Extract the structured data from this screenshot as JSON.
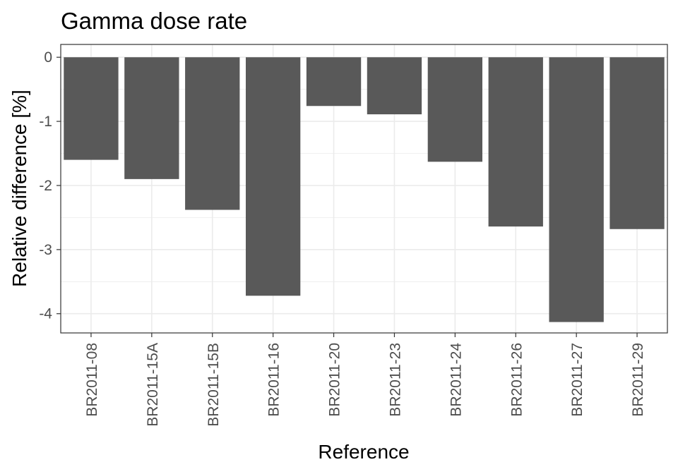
{
  "chart_data": {
    "type": "bar",
    "title": "Gamma dose rate",
    "xlabel": "Reference",
    "ylabel": "Relative difference [%]",
    "categories": [
      "BR2011-08",
      "BR2011-15A",
      "BR2011-15B",
      "BR2011-16",
      "BR2011-20",
      "BR2011-23",
      "BR2011-24",
      "BR2011-26",
      "BR2011-27",
      "BR2011-29"
    ],
    "values": [
      -1.6,
      -1.9,
      -2.38,
      -3.72,
      -0.76,
      -0.89,
      -1.63,
      -2.64,
      -4.13,
      -2.68
    ],
    "ylim": [
      -4.3,
      0.2
    ],
    "yticks": [
      0,
      -1,
      -2,
      -3,
      -4
    ],
    "ytick_labels": [
      "0",
      "-1",
      "-2",
      "-3",
      "-4"
    ],
    "grid": true,
    "bar_color": "#595959",
    "panel_border_color": "#333333",
    "grid_color": "#ebebeb"
  }
}
